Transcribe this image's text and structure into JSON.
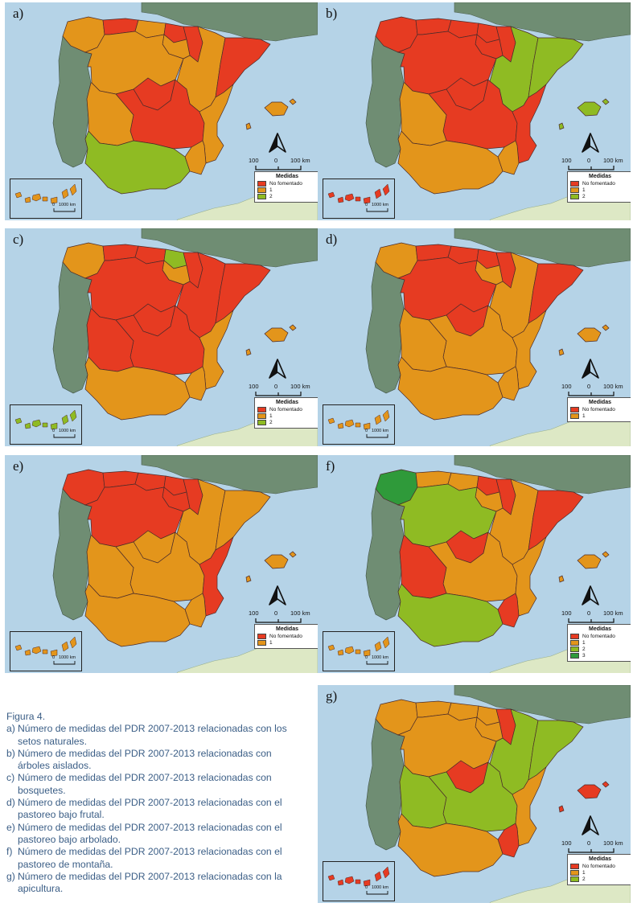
{
  "colors": {
    "sea": "#b5d3e7",
    "portugal": "#6f8d73",
    "france": "#6f8d73",
    "africa": "#dde8c5",
    "no_fomentado": "#e63b22",
    "level_1": "#e3951b",
    "level_2": "#8fbb23",
    "level_3": "#2f9a3a"
  },
  "scale": {
    "left": "100",
    "mid": "0",
    "right": "100 km"
  },
  "inset_scale": {
    "left": "0",
    "right": "1000 km"
  },
  "panels": [
    {
      "label": "a)",
      "legend_title": "Medidas",
      "legend": [
        "No fomentado",
        "1",
        "2"
      ],
      "regions": {
        "gal": "level_1",
        "ast": "no_fomentado",
        "can": "level_1",
        "pv": "no_fomentado",
        "nav": "no_fomentado",
        "rio": "level_1",
        "ara": "level_1",
        "cat": "no_fomentado",
        "cyl": "level_1",
        "mad": "no_fomentado",
        "clm": "no_fomentado",
        "val": "level_1",
        "ext": "level_1",
        "and": "level_2",
        "mur": "level_1",
        "bal": "level_1",
        "icn": "level_1"
      }
    },
    {
      "label": "b)",
      "legend_title": "Medidas",
      "legend": [
        "No fomentado",
        "1",
        "2"
      ],
      "regions": {
        "gal": "no_fomentado",
        "ast": "no_fomentado",
        "can": "no_fomentado",
        "pv": "no_fomentado",
        "nav": "no_fomentado",
        "rio": "no_fomentado",
        "ara": "level_2",
        "cat": "level_2",
        "cyl": "no_fomentado",
        "mad": "no_fomentado",
        "clm": "no_fomentado",
        "val": "no_fomentado",
        "ext": "level_1",
        "and": "level_1",
        "mur": "level_1",
        "bal": "level_2",
        "icn": "no_fomentado"
      }
    },
    {
      "label": "c)",
      "legend_title": "Medidas",
      "legend": [
        "No fomentado",
        "1",
        "2"
      ],
      "regions": {
        "gal": "level_1",
        "ast": "no_fomentado",
        "can": "no_fomentado",
        "pv": "level_2",
        "nav": "no_fomentado",
        "rio": "level_1",
        "ara": "no_fomentado",
        "cat": "no_fomentado",
        "cyl": "no_fomentado",
        "mad": "no_fomentado",
        "clm": "no_fomentado",
        "val": "level_1",
        "ext": "no_fomentado",
        "and": "level_1",
        "mur": "level_1",
        "bal": "level_1",
        "icn": "level_2"
      }
    },
    {
      "label": "d)",
      "legend_title": "Medidas",
      "legend": [
        "No fomentado",
        "1"
      ],
      "regions": {
        "gal": "level_1",
        "ast": "no_fomentado",
        "can": "no_fomentado",
        "pv": "no_fomentado",
        "nav": "no_fomentado",
        "rio": "level_1",
        "ara": "level_1",
        "cat": "no_fomentado",
        "cyl": "no_fomentado",
        "mad": "no_fomentado",
        "clm": "level_1",
        "val": "level_1",
        "ext": "level_1",
        "and": "level_1",
        "mur": "level_1",
        "bal": "level_1",
        "icn": "level_1"
      }
    },
    {
      "label": "e)",
      "legend_title": "Medidas",
      "legend": [
        "No fomentado",
        "1"
      ],
      "regions": {
        "gal": "no_fomentado",
        "ast": "no_fomentado",
        "can": "no_fomentado",
        "pv": "no_fomentado",
        "nav": "no_fomentado",
        "rio": "no_fomentado",
        "ara": "level_1",
        "cat": "level_1",
        "cyl": "no_fomentado",
        "mad": "level_1",
        "clm": "level_1",
        "val": "no_fomentado",
        "ext": "level_1",
        "and": "level_1",
        "mur": "level_1",
        "bal": "level_1",
        "icn": "level_1"
      }
    },
    {
      "label": "f)",
      "legend_title": "Medidas",
      "legend": [
        "No fomentado",
        "1",
        "2",
        "3"
      ],
      "regions": {
        "gal": "level_3",
        "ast": "level_1",
        "can": "level_1",
        "pv": "no_fomentado",
        "nav": "no_fomentado",
        "rio": "level_1",
        "ara": "level_1",
        "cat": "no_fomentado",
        "cyl": "level_2",
        "mad": "no_fomentado",
        "clm": "level_1",
        "val": "level_1",
        "ext": "no_fomentado",
        "and": "level_2",
        "mur": "no_fomentado",
        "bal": "level_1",
        "icn": "level_1"
      }
    },
    {
      "label": "g)",
      "legend_title": "Medidas",
      "legend": [
        "No fomentado",
        "1",
        "2"
      ],
      "regions": {
        "gal": "level_1",
        "ast": "level_1",
        "can": "level_1",
        "pv": "level_1",
        "nav": "no_fomentado",
        "rio": "level_1",
        "ara": "level_2",
        "cat": "level_2",
        "cyl": "level_1",
        "mad": "no_fomentado",
        "clm": "level_2",
        "val": "level_1",
        "ext": "level_2",
        "and": "level_1",
        "mur": "no_fomentado",
        "bal": "no_fomentado",
        "icn": "no_fomentado"
      }
    }
  ],
  "caption": {
    "title": "Figura 4.",
    "items": [
      {
        "letter": "a)",
        "text": "Número de medidas del PDR 2007-2013 relacionadas con los setos naturales."
      },
      {
        "letter": "b)",
        "text": "Número de medidas del PDR 2007-2013 relacionadas con árboles aislados."
      },
      {
        "letter": "c)",
        "text": "Número de medidas del PDR 2007-2013 relacionadas con bosquetes."
      },
      {
        "letter": "d)",
        "text": "Número de medidas del PDR 2007-2013 relacionadas con el pastoreo bajo frutal."
      },
      {
        "letter": "e)",
        "text": "Número de medidas del PDR 2007-2013 relacionadas con el pastoreo bajo arbolado."
      },
      {
        "letter": "f)",
        "text": "Número de medidas del PDR 2007-2013 relacionadas con el pastoreo de montaña."
      },
      {
        "letter": "g)",
        "text": "Número de medidas del PDR 2007-2013 relacionadas con la apicultura."
      }
    ]
  }
}
